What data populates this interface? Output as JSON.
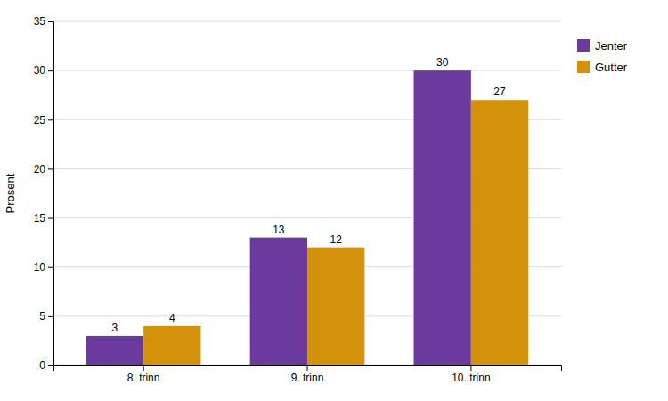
{
  "chart_data": {
    "type": "bar",
    "categories": [
      "8. trinn",
      "9. trinn",
      "10. trinn"
    ],
    "series": [
      {
        "name": "Jenter",
        "color": "#6B3A9E",
        "values": [
          3,
          13,
          30
        ]
      },
      {
        "name": "Gutter",
        "color": "#D4920A",
        "values": [
          4,
          12,
          27
        ]
      }
    ],
    "ylabel": "Prosent",
    "ylim": [
      0,
      35
    ],
    "yticks": [
      0,
      5,
      10,
      15,
      20,
      25,
      30,
      35
    ],
    "grid": true,
    "legend": "right",
    "data_labels": true
  }
}
